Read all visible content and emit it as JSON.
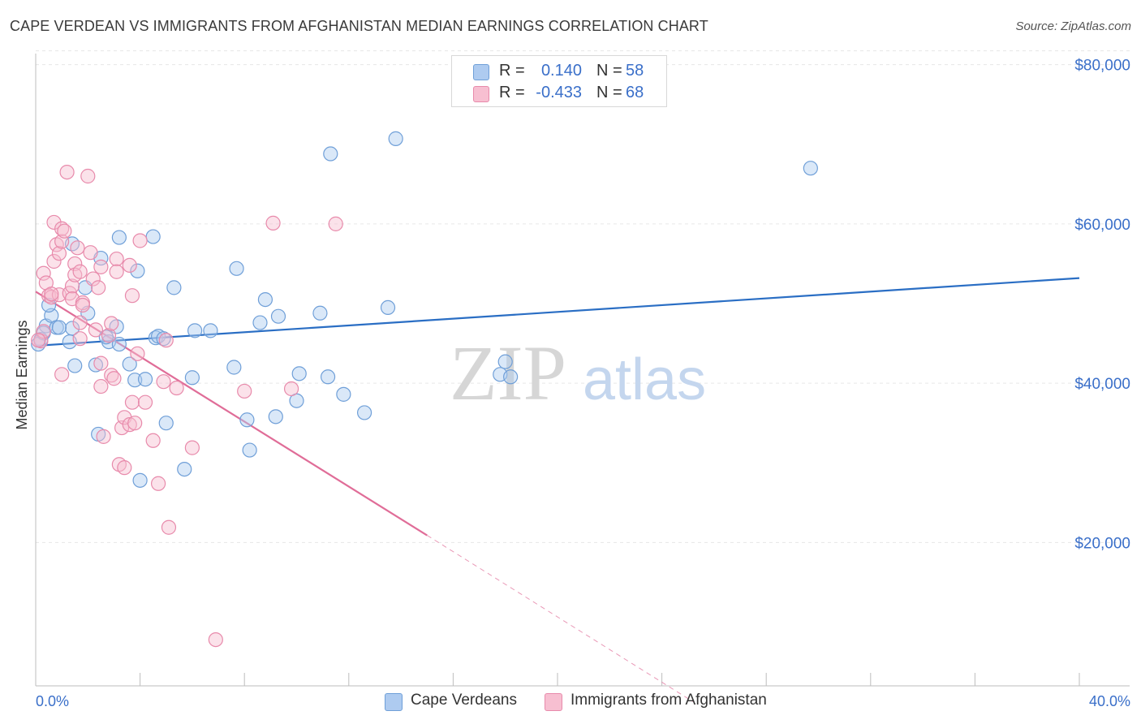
{
  "title": "CAPE VERDEAN VS IMMIGRANTS FROM AFGHANISTAN MEDIAN EARNINGS CORRELATION CHART",
  "source": "Source: ZipAtlas.com",
  "watermark": {
    "part1": "ZIP",
    "part2": "atlas"
  },
  "legend": {
    "r_label": "R =",
    "n_label": "N =",
    "series": [
      {
        "name": "Cape Verdeans",
        "r": "0.140",
        "n": "58",
        "fill": "#aecbf0",
        "stroke": "#6f9fd8",
        "line": "#2a6ec4"
      },
      {
        "name": "Immigrants from Afghanistan",
        "r": "-0.433",
        "n": "68",
        "fill": "#f7bfd1",
        "stroke": "#e88aab",
        "line": "#e06d98"
      }
    ]
  },
  "chart_data": {
    "type": "scatter",
    "title": "CAPE VERDEAN VS IMMIGRANTS FROM AFGHANISTAN MEDIAN EARNINGS CORRELATION CHART",
    "xlabel": "",
    "ylabel": "Median Earnings",
    "xlim": [
      0,
      40
    ],
    "ylim": [
      2000,
      82000
    ],
    "x_tick_labels": [
      "0.0%",
      "40.0%"
    ],
    "y_ticks": [
      20000,
      40000,
      60000,
      80000
    ],
    "y_tick_labels": [
      "$20,000",
      "$40,000",
      "$60,000",
      "$80,000"
    ],
    "grid": true,
    "series": [
      {
        "name": "Cape Verdeans",
        "trend": {
          "x0": 0.0,
          "y0": 44700,
          "x1": 40.0,
          "y1": 53200
        },
        "points": [
          [
            0.2,
            45500
          ],
          [
            0.4,
            47200
          ],
          [
            0.6,
            48500
          ],
          [
            0.5,
            49800
          ],
          [
            0.8,
            47000
          ],
          [
            1.4,
            46900
          ],
          [
            1.3,
            45200
          ],
          [
            1.5,
            42200
          ],
          [
            1.4,
            57500
          ],
          [
            1.9,
            52000
          ],
          [
            2.0,
            48800
          ],
          [
            2.3,
            42300
          ],
          [
            2.4,
            33600
          ],
          [
            2.5,
            55700
          ],
          [
            2.8,
            45200
          ],
          [
            2.7,
            45800
          ],
          [
            3.1,
            47100
          ],
          [
            3.2,
            44900
          ],
          [
            3.2,
            58300
          ],
          [
            3.6,
            42400
          ],
          [
            3.8,
            40400
          ],
          [
            3.9,
            54100
          ],
          [
            4.0,
            27800
          ],
          [
            4.2,
            40500
          ],
          [
            4.5,
            58400
          ],
          [
            4.6,
            45700
          ],
          [
            4.7,
            45900
          ],
          [
            4.9,
            45600
          ],
          [
            5.0,
            35000
          ],
          [
            5.3,
            52000
          ],
          [
            5.7,
            29200
          ],
          [
            6.0,
            40700
          ],
          [
            6.1,
            46600
          ],
          [
            6.7,
            46600
          ],
          [
            7.6,
            42000
          ],
          [
            7.7,
            54400
          ],
          [
            8.1,
            35400
          ],
          [
            8.2,
            31600
          ],
          [
            8.6,
            47600
          ],
          [
            8.8,
            50500
          ],
          [
            9.2,
            35800
          ],
          [
            9.3,
            48400
          ],
          [
            10.0,
            37800
          ],
          [
            10.1,
            41200
          ],
          [
            10.9,
            48800
          ],
          [
            11.2,
            40800
          ],
          [
            11.3,
            68800
          ],
          [
            11.8,
            38600
          ],
          [
            12.6,
            36300
          ],
          [
            13.5,
            49500
          ],
          [
            13.8,
            70700
          ],
          [
            18.0,
            42700
          ],
          [
            17.8,
            41100
          ],
          [
            18.2,
            40800
          ],
          [
            29.7,
            67000
          ],
          [
            0.1,
            44900
          ],
          [
            0.3,
            46300
          ],
          [
            0.9,
            47000
          ]
        ]
      },
      {
        "name": "Immigrants from Afghanistan",
        "trend": {
          "x0": 0.0,
          "y0": 51500,
          "x1": 15.0,
          "y1": 20900,
          "dash_to_x": 25.2,
          "dash_to_y": 0
        },
        "points": [
          [
            0.2,
            45300
          ],
          [
            0.3,
            46500
          ],
          [
            0.3,
            53800
          ],
          [
            0.4,
            52600
          ],
          [
            0.5,
            51000
          ],
          [
            0.6,
            50800
          ],
          [
            0.7,
            60200
          ],
          [
            0.7,
            55300
          ],
          [
            0.8,
            57400
          ],
          [
            0.9,
            56300
          ],
          [
            0.9,
            51100
          ],
          [
            1.0,
            57800
          ],
          [
            1.0,
            59400
          ],
          [
            1.0,
            41100
          ],
          [
            1.1,
            59100
          ],
          [
            1.2,
            66500
          ],
          [
            1.3,
            51300
          ],
          [
            1.4,
            52200
          ],
          [
            1.4,
            50600
          ],
          [
            1.5,
            55000
          ],
          [
            1.5,
            53600
          ],
          [
            1.6,
            57000
          ],
          [
            1.7,
            54000
          ],
          [
            1.7,
            47600
          ],
          [
            1.7,
            45600
          ],
          [
            1.8,
            50100
          ],
          [
            1.8,
            49800
          ],
          [
            2.0,
            66000
          ],
          [
            2.1,
            56400
          ],
          [
            2.2,
            53100
          ],
          [
            2.3,
            46700
          ],
          [
            2.4,
            52000
          ],
          [
            2.5,
            54600
          ],
          [
            2.5,
            42500
          ],
          [
            2.5,
            39600
          ],
          [
            2.6,
            33300
          ],
          [
            2.8,
            46000
          ],
          [
            2.9,
            41000
          ],
          [
            3.0,
            40600
          ],
          [
            2.9,
            47500
          ],
          [
            3.1,
            55600
          ],
          [
            3.1,
            54000
          ],
          [
            3.2,
            29800
          ],
          [
            3.3,
            34400
          ],
          [
            3.4,
            29400
          ],
          [
            3.4,
            35700
          ],
          [
            3.6,
            54800
          ],
          [
            3.6,
            34800
          ],
          [
            3.7,
            37600
          ],
          [
            3.7,
            51000
          ],
          [
            3.9,
            43700
          ],
          [
            3.8,
            35000
          ],
          [
            4.0,
            57900
          ],
          [
            4.2,
            37600
          ],
          [
            4.5,
            32800
          ],
          [
            4.7,
            27400
          ],
          [
            4.9,
            40200
          ],
          [
            5.0,
            45400
          ],
          [
            5.1,
            21900
          ],
          [
            5.4,
            39400
          ],
          [
            6.0,
            31900
          ],
          [
            6.9,
            7800
          ],
          [
            8.0,
            39000
          ],
          [
            9.1,
            60100
          ],
          [
            9.8,
            39300
          ],
          [
            11.5,
            60000
          ],
          [
            0.1,
            45400
          ],
          [
            0.6,
            51200
          ]
        ]
      }
    ]
  }
}
